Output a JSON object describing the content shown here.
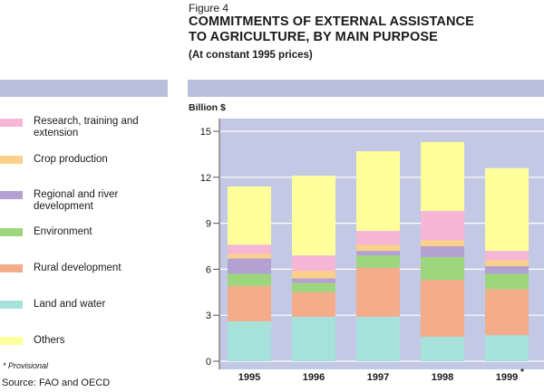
{
  "header": {
    "figure_label": "Figure 4",
    "title_line1": "COMMITMENTS OF EXTERNAL ASSISTANCE",
    "title_line2": "TO AGRICULTURE, BY MAIN PURPOSE",
    "subtitle": "(At constant 1995 prices)"
  },
  "footer": {
    "note": "* Provisional",
    "source": "Source: FAO and OECD"
  },
  "colors": {
    "plot_background": "#c3c8e4",
    "band": "#b9c0dc",
    "gridline": "#ffffff"
  },
  "legend": [
    {
      "label_line1": "Research, training and",
      "label_line2": "extension",
      "color": "#f6b6d6"
    },
    {
      "label_line1": "Crop production",
      "label_line2": "",
      "color": "#fbd08a"
    },
    {
      "label_line1": "Regional and river",
      "label_line2": "development",
      "color": "#b3a1d2"
    },
    {
      "label_line1": "Environment",
      "label_line2": "",
      "color": "#9dd67d"
    },
    {
      "label_line1": "Rural development",
      "label_line2": "",
      "color": "#f5ac8a"
    },
    {
      "label_line1": "Land and water",
      "label_line2": "",
      "color": "#a6e1dc"
    },
    {
      "label_line1": "Others",
      "label_line2": "",
      "color": "#ffff9c"
    }
  ],
  "chart_data": {
    "type": "bar",
    "stacked": true,
    "ylabel": "Billion $",
    "ylim": [
      0,
      15
    ],
    "yticks": [
      "0",
      "3",
      "6",
      "9",
      "12",
      "15"
    ],
    "grid": true,
    "categories": [
      "1995",
      "1996",
      "1997",
      "1998",
      "1999"
    ],
    "category_marks": [
      "",
      "",
      "",
      "",
      "*"
    ],
    "series": [
      {
        "name": "Land and water",
        "color": "#a6e1dc",
        "values": [
          2.6,
          2.9,
          2.9,
          1.6,
          1.7
        ]
      },
      {
        "name": "Rural development",
        "color": "#f5ac8a",
        "values": [
          2.3,
          1.6,
          3.2,
          3.7,
          3.0
        ]
      },
      {
        "name": "Environment",
        "color": "#9dd67d",
        "values": [
          0.8,
          0.6,
          0.8,
          1.5,
          1.0
        ]
      },
      {
        "name": "Regional and river development",
        "color": "#b3a1d2",
        "values": [
          1.0,
          0.3,
          0.3,
          0.7,
          0.5
        ]
      },
      {
        "name": "Crop production",
        "color": "#fbd08a",
        "values": [
          0.3,
          0.5,
          0.4,
          0.4,
          0.4
        ]
      },
      {
        "name": "Research, training and extension",
        "color": "#f6b6d6",
        "values": [
          0.6,
          1.0,
          0.9,
          1.9,
          0.6
        ]
      },
      {
        "name": "Others",
        "color": "#ffff9c",
        "values": [
          3.8,
          5.2,
          5.2,
          4.5,
          5.4
        ]
      }
    ]
  }
}
